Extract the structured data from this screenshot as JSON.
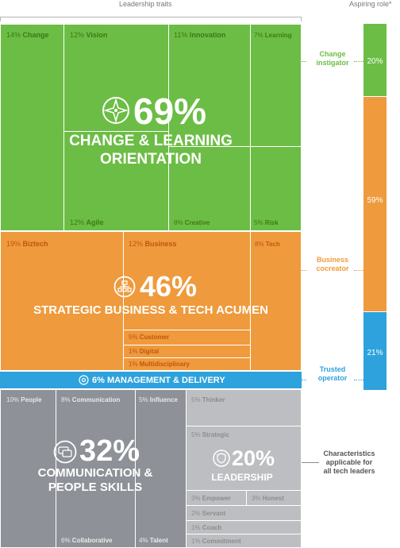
{
  "chart_data": {
    "type": "treemap",
    "header_left": "Leadership traits",
    "header_right": "Aspiring role*",
    "categories": [
      {
        "id": "change",
        "percent_label": "69%",
        "title_line1": "CHANGE & LEARNING",
        "title_line2": "ORIENTATION",
        "color": "#6cbd45",
        "traits": [
          {
            "pct": "14%",
            "name": "Change"
          },
          {
            "pct": "12%",
            "name": "Vision"
          },
          {
            "pct": "11%",
            "name": "Innovation"
          },
          {
            "pct": "7%",
            "name": "Learning"
          },
          {
            "pct": "12%",
            "name": "Agile"
          },
          {
            "pct": "8%",
            "name": "Creative"
          },
          {
            "pct": "5%",
            "name": "Risk"
          }
        ]
      },
      {
        "id": "strategic",
        "percent_label": "46%",
        "title_line1": "STRATEGIC BUSINESS & TECH ACUMEN",
        "color": "#ef9a3c",
        "traits": [
          {
            "pct": "19%",
            "name": "Biztech"
          },
          {
            "pct": "12%",
            "name": "Business"
          },
          {
            "pct": "8%",
            "name": "Tech"
          },
          {
            "pct": "5%",
            "name": "Customer"
          },
          {
            "pct": "1%",
            "name": "Digital"
          },
          {
            "pct": "1%",
            "name": "Multidisciplinary"
          }
        ]
      },
      {
        "id": "management",
        "label": "6% MANAGEMENT & DELIVERY",
        "color": "#2ea2dc"
      },
      {
        "id": "communication",
        "percent_label": "32%",
        "title_line1": "COMMUNICATION &",
        "title_line2": "PEOPLE SKILLS",
        "color": "#8e9197",
        "traits": [
          {
            "pct": "10%",
            "name": "People"
          },
          {
            "pct": "8%",
            "name": "Communication"
          },
          {
            "pct": "5%",
            "name": "Influence"
          },
          {
            "pct": "6%",
            "name": "Collaborative"
          },
          {
            "pct": "4%",
            "name": "Talent"
          }
        ]
      },
      {
        "id": "leadership",
        "percent_label": "20%",
        "title_line1": "LEADERSHIP",
        "color": "#bdbec1",
        "traits": [
          {
            "pct": "5%",
            "name": "Thinker"
          },
          {
            "pct": "5%",
            "name": "Strategic"
          },
          {
            "pct": "3%",
            "name": "Empower"
          },
          {
            "pct": "3%",
            "name": "Honest"
          },
          {
            "pct": "2%",
            "name": "Servant"
          },
          {
            "pct": "1%",
            "name": "Coach"
          },
          {
            "pct": "1%",
            "name": "Commitment"
          }
        ]
      }
    ],
    "aspiring_role": [
      {
        "name_line1": "Change",
        "name_line2": "instigator",
        "value": 20,
        "label": "20%",
        "color": "#6cbd45"
      },
      {
        "name_line1": "Business",
        "name_line2": "cocreator",
        "value": 59,
        "label": "59%",
        "color": "#ef9a3c"
      },
      {
        "name_line1": "Trusted",
        "name_line2": "operator",
        "value": 21,
        "label": "21%",
        "color": "#2ea2dc"
      }
    ],
    "annotation": {
      "line1": "Characteristics",
      "line2": "applicable for",
      "line3": "all tech leaders"
    }
  }
}
